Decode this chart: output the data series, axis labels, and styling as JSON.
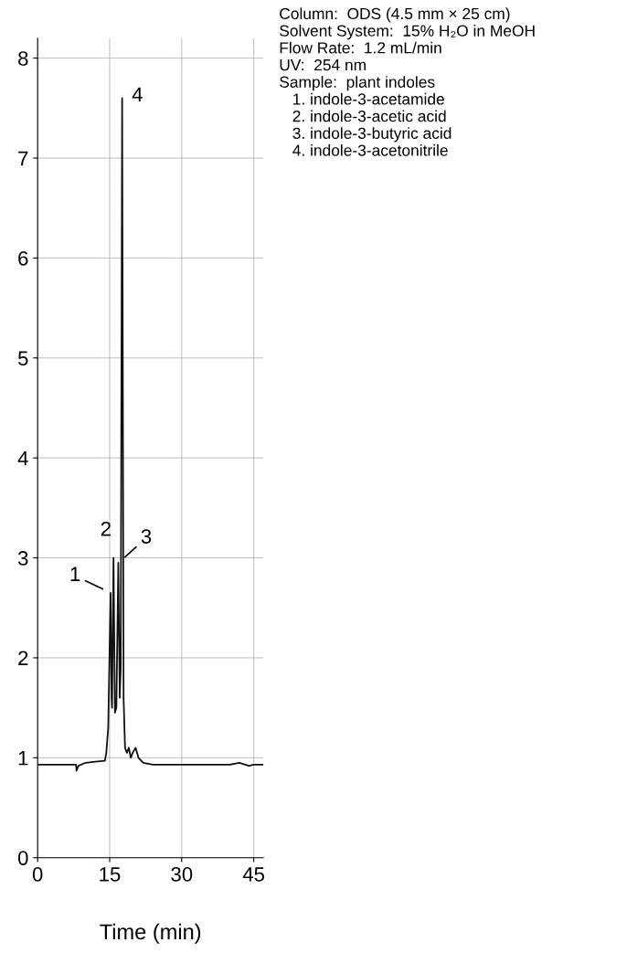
{
  "chart_data": {
    "type": "line",
    "xlabel": "Time (min)",
    "x": [
      0,
      4,
      8.0,
      8.1,
      8.5,
      10,
      12,
      14,
      14.3,
      14.7,
      15.2,
      15.4,
      15.5,
      15.8,
      16.1,
      16.4,
      16.8,
      17.1,
      17.3,
      17.6,
      17.9,
      18.2,
      18.6,
      19.0,
      19.4,
      19.8,
      20.4,
      21.0,
      22,
      24,
      28,
      32,
      36,
      40,
      42,
      44,
      45,
      47
    ],
    "series": [
      {
        "color": "#111111",
        "values": [
          0.93,
          0.93,
          0.93,
          0.87,
          0.92,
          0.95,
          0.96,
          0.97,
          1.05,
          1.3,
          2.65,
          1.6,
          1.5,
          3.0,
          1.45,
          1.5,
          2.95,
          1.6,
          1.9,
          7.6,
          1.6,
          1.1,
          1.05,
          1.1,
          1.0,
          1.05,
          1.1,
          1.0,
          0.95,
          0.93,
          0.93,
          0.93,
          0.93,
          0.93,
          0.95,
          0.92,
          0.93,
          0.93
        ]
      }
    ],
    "xlim": [
      0,
      47
    ],
    "ylim": [
      0,
      8.2
    ],
    "xticks": [
      0,
      15,
      30,
      45
    ],
    "yticks": [
      0,
      1,
      2,
      3,
      4,
      5,
      6,
      7,
      8
    ],
    "grid": true,
    "annotations": [
      {
        "text": "1",
        "x": 15.2,
        "y": 2.65
      },
      {
        "text": "2",
        "x": 15.8,
        "y": 3.0
      },
      {
        "text": "3",
        "x": 16.8,
        "y": 2.95
      },
      {
        "text": "4",
        "x": 17.6,
        "y": 7.6
      },
      "Column:  ODS (4.5 mm × 25 cm)\nSolvent System:  15% H₂O in MeOH\nFlow Rate:  1.2 mL/min\nUV:  254 nm\nSample:  plant indoles\n   1. indole-3-acetamide\n   2. indole-3-acetic acid\n   3. indole-3-butyric acid\n   4. indole-3-acetonitrile"
    ]
  }
}
